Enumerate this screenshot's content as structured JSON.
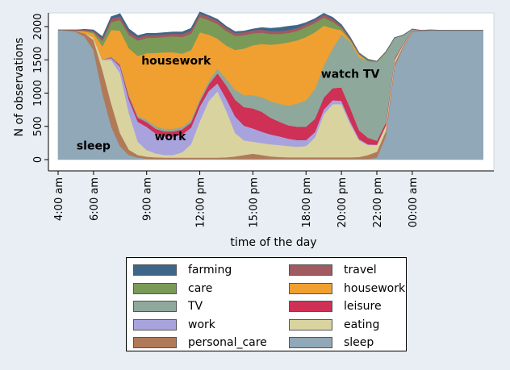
{
  "chart_data": {
    "type": "area",
    "stacked": true,
    "title": "",
    "xlabel": "time of the day",
    "ylabel": "N of observations",
    "ylim": [
      0,
      2050
    ],
    "yticks": [
      0,
      500,
      1000,
      1500,
      2000
    ],
    "xlim": [
      240,
      1700
    ],
    "xticks": [
      {
        "value": 240,
        "label": "4:00 am"
      },
      {
        "value": 360,
        "label": "6:00 am"
      },
      {
        "value": 540,
        "label": "9:00 am"
      },
      {
        "value": 720,
        "label": "12:00 pm"
      },
      {
        "value": 900,
        "label": "15:00 pm"
      },
      {
        "value": 1080,
        "label": "18:00 pm"
      },
      {
        "value": 1200,
        "label": "20:00 pm"
      },
      {
        "value": 1320,
        "label": "22:00 pm"
      },
      {
        "value": 1440,
        "label": "00:00 am"
      }
    ],
    "x": [
      240,
      300,
      330,
      360,
      390,
      420,
      450,
      480,
      510,
      540,
      570,
      600,
      630,
      660,
      690,
      720,
      750,
      780,
      810,
      840,
      870,
      900,
      930,
      960,
      990,
      1020,
      1050,
      1080,
      1110,
      1140,
      1170,
      1200,
      1230,
      1260,
      1290,
      1320,
      1350,
      1380,
      1410,
      1440,
      1470,
      1500,
      1560,
      1620,
      1680
    ],
    "series": [
      {
        "name": "sleep",
        "color": "#90a8b8",
        "values": [
          1950,
          1920,
          1850,
          1650,
          1000,
          500,
          200,
          70,
          30,
          15,
          10,
          10,
          10,
          10,
          10,
          10,
          10,
          10,
          10,
          10,
          10,
          10,
          10,
          10,
          10,
          10,
          10,
          10,
          10,
          10,
          10,
          10,
          10,
          10,
          10,
          30,
          350,
          1400,
          1700,
          1920,
          1930,
          1940,
          1940,
          1940,
          1940
        ]
      },
      {
        "name": "personal_care",
        "color": "#b07a58",
        "values": [
          0,
          15,
          50,
          150,
          350,
          350,
          200,
          80,
          40,
          30,
          25,
          20,
          20,
          20,
          20,
          20,
          20,
          20,
          25,
          40,
          60,
          80,
          60,
          40,
          30,
          25,
          25,
          25,
          25,
          25,
          25,
          25,
          25,
          30,
          60,
          90,
          80,
          50,
          20,
          10,
          5,
          5,
          5,
          5,
          5
        ]
      },
      {
        "name": "eating",
        "color": "#d9d3a0",
        "values": [
          0,
          0,
          0,
          40,
          150,
          650,
          900,
          550,
          200,
          100,
          60,
          40,
          40,
          80,
          200,
          550,
          850,
          1000,
          700,
          350,
          220,
          180,
          180,
          180,
          180,
          170,
          160,
          170,
          300,
          650,
          800,
          800,
          500,
          250,
          150,
          100,
          80,
          50,
          20,
          5,
          0,
          0,
          0,
          0,
          0
        ]
      },
      {
        "name": "work",
        "color": "#a9a3dd",
        "values": [
          0,
          0,
          0,
          0,
          5,
          30,
          100,
          200,
          300,
          350,
          300,
          280,
          280,
          270,
          250,
          220,
          150,
          120,
          180,
          250,
          220,
          200,
          170,
          150,
          130,
          110,
          100,
          90,
          80,
          70,
          60,
          50,
          40,
          20,
          10,
          5,
          5,
          5,
          0,
          0,
          0,
          0,
          0,
          0,
          0
        ]
      },
      {
        "name": "leisure",
        "color": "#cf3055",
        "values": [
          0,
          0,
          0,
          0,
          0,
          10,
          20,
          50,
          60,
          70,
          70,
          75,
          75,
          75,
          75,
          75,
          100,
          150,
          200,
          250,
          280,
          300,
          300,
          250,
          220,
          200,
          200,
          200,
          200,
          180,
          180,
          200,
          200,
          130,
          100,
          60,
          40,
          20,
          10,
          5,
          0,
          0,
          0,
          0,
          0
        ]
      },
      {
        "name": "TV",
        "color": "#8fa89c",
        "values": [
          0,
          0,
          0,
          0,
          0,
          10,
          20,
          25,
          30,
          35,
          40,
          40,
          40,
          40,
          40,
          40,
          50,
          70,
          100,
          150,
          180,
          200,
          220,
          250,
          270,
          300,
          350,
          400,
          450,
          480,
          600,
          800,
          1000,
          1100,
          1150,
          1180,
          1050,
          300,
          120,
          20,
          5,
          0,
          0,
          0,
          0
        ]
      },
      {
        "name": "housework",
        "color": "#f0a030",
        "values": [
          0,
          5,
          30,
          60,
          200,
          400,
          500,
          700,
          900,
          1000,
          1100,
          1150,
          1150,
          1100,
          1050,
          1000,
          700,
          450,
          500,
          600,
          700,
          750,
          800,
          850,
          900,
          950,
          950,
          950,
          850,
          600,
          300,
          60,
          20,
          40,
          0,
          0,
          0,
          0,
          0,
          0,
          0,
          0,
          0,
          0,
          0
        ]
      },
      {
        "name": "care",
        "color": "#7a9a58",
        "values": [
          0,
          0,
          10,
          20,
          80,
          120,
          160,
          200,
          230,
          230,
          230,
          230,
          240,
          250,
          250,
          230,
          220,
          220,
          220,
          210,
          200,
          180,
          170,
          160,
          150,
          140,
          140,
          150,
          140,
          120,
          100,
          40,
          15,
          10,
          20,
          10,
          10,
          5,
          0,
          0,
          0,
          0,
          0,
          0,
          0
        ]
      },
      {
        "name": "travel",
        "color": "#a05a60",
        "values": [
          0,
          10,
          15,
          20,
          40,
          50,
          55,
          50,
          45,
          45,
          40,
          40,
          40,
          45,
          50,
          50,
          50,
          50,
          50,
          45,
          45,
          45,
          45,
          45,
          45,
          45,
          45,
          45,
          45,
          45,
          45,
          30,
          20,
          10,
          5,
          5,
          5,
          5,
          5,
          5,
          5,
          5,
          0,
          0,
          0
        ]
      },
      {
        "name": "farming",
        "color": "#3d6688",
        "values": [
          0,
          0,
          5,
          10,
          25,
          30,
          40,
          40,
          30,
          25,
          25,
          25,
          25,
          30,
          30,
          25,
          20,
          20,
          20,
          20,
          20,
          20,
          30,
          40,
          50,
          55,
          40,
          20,
          20,
          20,
          20,
          15,
          10,
          5,
          5,
          0,
          0,
          0,
          0,
          0,
          0,
          0,
          0,
          0,
          0
        ]
      }
    ],
    "annotations": [
      {
        "text": "housework",
        "x": 640,
        "y": 1430
      },
      {
        "text": "watch TV",
        "x": 1230,
        "y": 1230
      },
      {
        "text": "work",
        "x": 620,
        "y": 290
      },
      {
        "text": "sleep",
        "x": 360,
        "y": 150
      }
    ],
    "grid": false,
    "legend_position": "bottom",
    "legend_order": [
      "farming",
      "travel",
      "care",
      "housework",
      "TV",
      "leisure",
      "work",
      "eating",
      "personal_care",
      "sleep"
    ]
  }
}
